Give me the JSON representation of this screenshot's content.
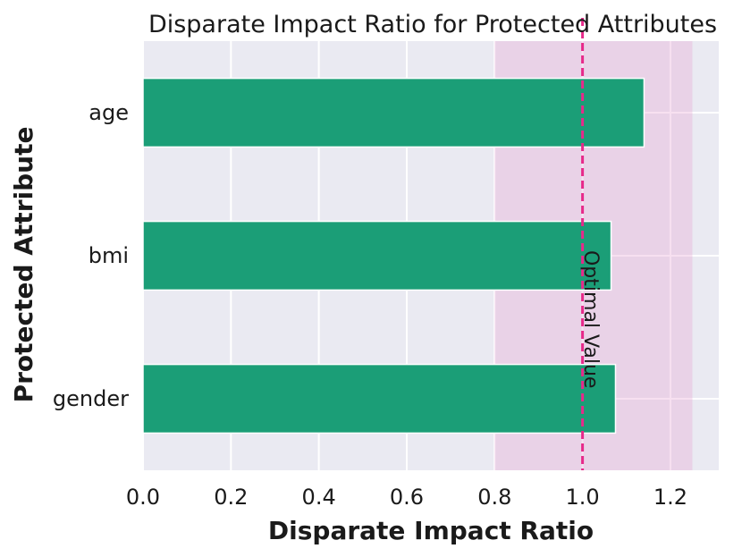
{
  "chart_data": {
    "type": "bar",
    "orientation": "horizontal",
    "title": "Disparate Impact Ratio for Protected Attributes",
    "xlabel": "Disparate Impact Ratio",
    "ylabel": "Protected Attribute",
    "categories": [
      "age",
      "bmi",
      "gender"
    ],
    "values": [
      1.14,
      1.065,
      1.075
    ],
    "xlim": [
      0.0,
      1.31
    ],
    "xticks": [
      "0.0",
      "0.2",
      "0.4",
      "0.6",
      "0.8",
      "1.0",
      "1.2"
    ],
    "xtick_values": [
      0.0,
      0.2,
      0.4,
      0.6,
      0.8,
      1.0,
      1.2
    ],
    "fair_region": [
      0.8,
      1.25
    ],
    "optimal_value": 1.0,
    "optimal_label": "Optimal Value",
    "grid": true,
    "colors": {
      "bar": "#1b9e77",
      "background": "#eaeaf2",
      "grid": "#ffffff",
      "fair_region": "#e7a6d4",
      "optimal_line": "#e7298a"
    }
  }
}
